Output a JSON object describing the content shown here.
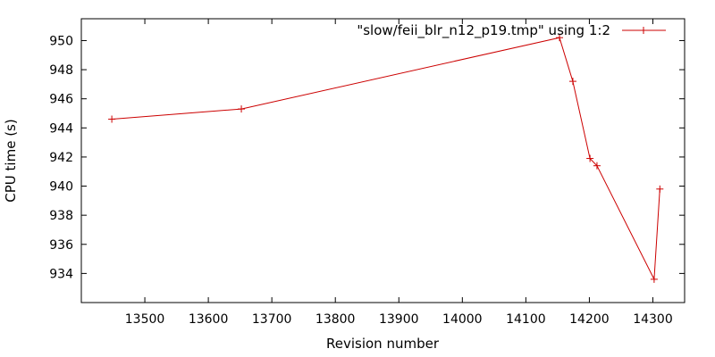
{
  "chart_data": {
    "type": "line",
    "xlabel": "Revision number",
    "ylabel": "CPU time (s)",
    "xlim": [
      13400,
      14350
    ],
    "ylim": [
      932,
      951.5
    ],
    "x_ticks": [
      13500,
      13600,
      13700,
      13800,
      13900,
      14000,
      14100,
      14200,
      14300
    ],
    "y_ticks": [
      934,
      936,
      938,
      940,
      942,
      944,
      946,
      948,
      950
    ],
    "grid": false,
    "legend_position": "top-right",
    "series": [
      {
        "name": "\"slow/feii_blr_n12_p19.tmp\" using 1:2",
        "color": "#cc0000",
        "marker": "plus",
        "points": [
          {
            "x": 13448,
            "y": 944.6
          },
          {
            "x": 13652,
            "y": 945.3
          },
          {
            "x": 14153,
            "y": 950.2
          },
          {
            "x": 14174,
            "y": 947.2
          },
          {
            "x": 14201,
            "y": 941.9
          },
          {
            "x": 14212,
            "y": 941.4
          },
          {
            "x": 14302,
            "y": 933.6
          },
          {
            "x": 14311,
            "y": 939.8
          }
        ]
      }
    ]
  }
}
